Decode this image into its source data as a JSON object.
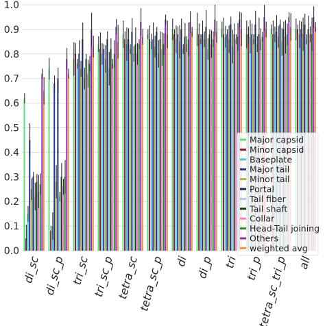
{
  "chart_data": {
    "type": "bar",
    "title": "",
    "xlabel": "",
    "ylabel": "",
    "ylim": [
      0,
      1.0
    ],
    "yticks": [
      "0.0",
      "0.1",
      "0.2",
      "0.3",
      "0.4",
      "0.5",
      "0.6",
      "0.7",
      "0.8",
      "0.9",
      "1.0"
    ],
    "grid": true,
    "legend_position": "bottom-right",
    "categories": [
      "di_sc",
      "di_sc_p",
      "tri_sc",
      "tri_sc_p",
      "tetra_sc",
      "tetra_sc_p",
      "di",
      "di_p",
      "tri",
      "tri_p",
      "tetra_sc_tri_p",
      "all"
    ],
    "series": [
      {
        "name": "Major capsid",
        "color": "#5ddc7a",
        "values": [
          0.62,
          0.74,
          0.78,
          0.84,
          0.88,
          0.88,
          0.9,
          0.9,
          0.9,
          0.88,
          0.9,
          0.9
        ]
      },
      {
        "name": "Minor capsid",
        "color": "#8b1a3a",
        "values": [
          0.05,
          0.08,
          0.8,
          0.82,
          0.86,
          0.86,
          0.88,
          0.88,
          0.88,
          0.88,
          0.88,
          0.9
        ]
      },
      {
        "name": "Baseplate",
        "color": "#4ec6d9",
        "values": [
          0.15,
          0.1,
          0.76,
          0.8,
          0.84,
          0.85,
          0.86,
          0.86,
          0.87,
          0.87,
          0.88,
          0.88
        ]
      },
      {
        "name": "Major tail",
        "color": "#2a2f8f",
        "values": [
          0.45,
          0.68,
          0.8,
          0.82,
          0.86,
          0.86,
          0.88,
          0.88,
          0.88,
          0.88,
          0.89,
          0.9
        ]
      },
      {
        "name": "Minor tail",
        "color": "#a9b84a",
        "values": [
          0.25,
          0.28,
          0.74,
          0.78,
          0.82,
          0.83,
          0.85,
          0.86,
          0.86,
          0.86,
          0.87,
          0.88
        ]
      },
      {
        "name": "Portal",
        "color": "#0e2a66",
        "values": [
          0.3,
          0.7,
          0.86,
          0.86,
          0.89,
          0.89,
          0.9,
          0.91,
          0.92,
          0.92,
          0.92,
          0.92
        ]
      },
      {
        "name": "Tail fiber",
        "color": "#a9c9e8",
        "values": [
          0.22,
          0.22,
          0.7,
          0.74,
          0.8,
          0.8,
          0.82,
          0.82,
          0.83,
          0.84,
          0.85,
          0.86
        ]
      },
      {
        "name": "Tail shaft",
        "color": "#143a22",
        "values": [
          0.28,
          0.3,
          0.78,
          0.82,
          0.84,
          0.86,
          0.87,
          0.88,
          0.88,
          0.88,
          0.9,
          0.9
        ]
      },
      {
        "name": "Collar",
        "color": "#ee7fd0",
        "values": [
          0.24,
          0.26,
          0.72,
          0.76,
          0.8,
          0.82,
          0.84,
          0.84,
          0.86,
          0.86,
          0.87,
          0.88
        ]
      },
      {
        "name": "Head-Tail joining",
        "color": "#2f8a2f",
        "values": [
          0.27,
          0.3,
          0.76,
          0.8,
          0.84,
          0.84,
          0.86,
          0.86,
          0.87,
          0.87,
          0.88,
          0.88
        ]
      },
      {
        "name": "Others",
        "color": "#8e2fb3",
        "values": [
          0.72,
          0.78,
          0.9,
          0.91,
          0.93,
          0.94,
          0.93,
          0.94,
          0.94,
          0.95,
          0.95,
          0.95
        ]
      },
      {
        "name": "weighted avg",
        "color": "#f2944c",
        "values": [
          0.65,
          0.72,
          0.83,
          0.85,
          0.87,
          0.88,
          0.89,
          0.89,
          0.9,
          0.9,
          0.91,
          0.91
        ]
      }
    ]
  }
}
